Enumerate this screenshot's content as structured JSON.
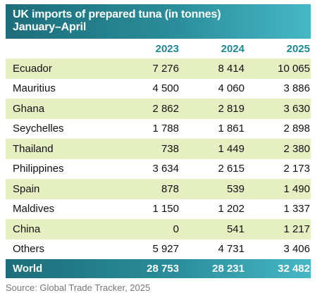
{
  "chart_data": {
    "type": "table",
    "title": "UK imports of prepared tuna (in tonnes)",
    "subtitle": "January–April",
    "columns": [
      "2023",
      "2024",
      "2025"
    ],
    "rows": [
      {
        "country": "Ecuador",
        "values": [
          "7 276",
          "8 414",
          "10 065"
        ]
      },
      {
        "country": "Mauritius",
        "values": [
          "4 500",
          "4 060",
          "3 886"
        ]
      },
      {
        "country": "Ghana",
        "values": [
          "2 862",
          "2 819",
          "3 630"
        ]
      },
      {
        "country": "Seychelles",
        "values": [
          "1 788",
          "1 861",
          "2 898"
        ]
      },
      {
        "country": "Thailand",
        "values": [
          "738",
          "1 449",
          "2 380"
        ]
      },
      {
        "country": "Philippines",
        "values": [
          "3 634",
          "2 615",
          "2 173"
        ]
      },
      {
        "country": "Spain",
        "values": [
          "878",
          "539",
          "1 490"
        ]
      },
      {
        "country": "Maldives",
        "values": [
          "1 150",
          "1 202",
          "1 337"
        ]
      },
      {
        "country": "China",
        "values": [
          "0",
          "541",
          "1 217"
        ]
      },
      {
        "country": "Others",
        "values": [
          "5 927",
          "4 731",
          "3 406"
        ]
      }
    ],
    "total": {
      "country": "World",
      "values": [
        "28 753",
        "28 231",
        "32 482"
      ]
    },
    "source": "Source: Global Trade Tracker, 2025"
  },
  "colors": {
    "header_dark": "#1c6e7a",
    "header_light": "#47b7c5",
    "year_text": "#1f8794",
    "row_shade": "#e5efc1"
  }
}
